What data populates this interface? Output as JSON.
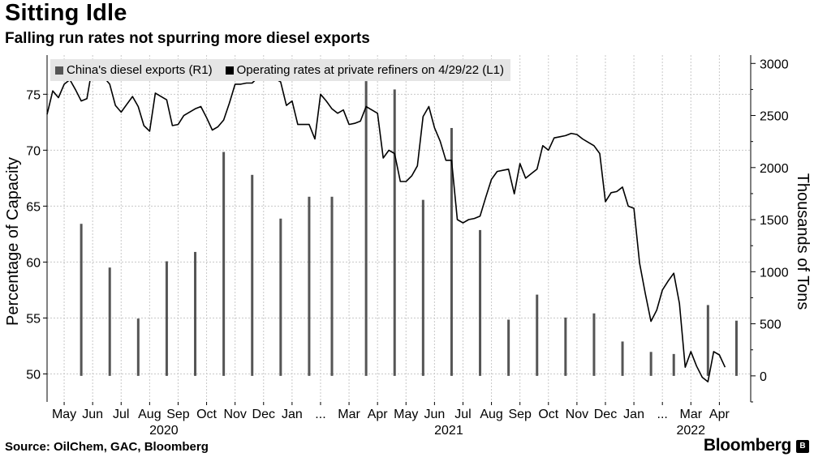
{
  "header": {
    "title": "Sitting Idle",
    "subtitle": "Falling run rates not spurring more diesel exports"
  },
  "footer": {
    "source": "Source: OilChem, GAC, Bloomberg",
    "brand": "Bloomberg",
    "brand_mark": "B"
  },
  "colors": {
    "bar": "#555555",
    "line": "#000000",
    "grid": "#c8c8c8",
    "legend_bg": "#e5e5e5"
  },
  "chart_data": {
    "type": "bar+line",
    "title": "Sitting Idle",
    "subtitle": "Falling run rates not spurring more diesel exports",
    "legend": [
      {
        "name": "China's diesel exports (R1)",
        "swatch_color": "#555555"
      },
      {
        "name": "Operating rates at private refiners on 4/29/22 (L1)",
        "swatch_color": "#000000"
      }
    ],
    "y_left": {
      "label": "Percentage of Capacity",
      "min": 47.5,
      "max": 78.5,
      "ticks": [
        50,
        55,
        60,
        65,
        70,
        75
      ]
    },
    "y_right": {
      "label": "Thousands of Tons",
      "min": -250,
      "max": 3080,
      "ticks": [
        0,
        500,
        1000,
        1500,
        2000,
        2500,
        3000
      ]
    },
    "x": {
      "min": 0,
      "max": 24.7,
      "unit": "months since 2020-05-01"
    },
    "month_ticks": [
      {
        "label": "May",
        "pos": 0.6
      },
      {
        "label": "Jun",
        "pos": 1.6
      },
      {
        "label": "Jul",
        "pos": 2.6
      },
      {
        "label": "Aug",
        "pos": 3.6
      },
      {
        "label": "Sep",
        "pos": 4.6
      },
      {
        "label": "Oct",
        "pos": 5.6
      },
      {
        "label": "Nov",
        "pos": 6.6
      },
      {
        "label": "Dec",
        "pos": 7.6
      },
      {
        "label": "Jan",
        "pos": 8.6
      },
      {
        "label": "...",
        "pos": 9.6
      },
      {
        "label": "Mar",
        "pos": 10.6
      },
      {
        "label": "Apr",
        "pos": 11.6
      },
      {
        "label": "May",
        "pos": 12.6
      },
      {
        "label": "Jun",
        "pos": 13.6
      },
      {
        "label": "Jul",
        "pos": 14.6
      },
      {
        "label": "Aug",
        "pos": 15.6
      },
      {
        "label": "Sep",
        "pos": 16.6
      },
      {
        "label": "Oct",
        "pos": 17.6
      },
      {
        "label": "Nov",
        "pos": 18.6
      },
      {
        "label": "Dec",
        "pos": 19.6
      },
      {
        "label": "Jan",
        "pos": 20.6
      },
      {
        "label": "...",
        "pos": 21.6
      },
      {
        "label": "Mar",
        "pos": 22.6
      },
      {
        "label": "Apr",
        "pos": 23.6
      }
    ],
    "year_ticks": [
      {
        "label": "2020",
        "pos": 4.1
      },
      {
        "label": "2021",
        "pos": 14.1
      },
      {
        "label": "2022",
        "pos": 22.6
      }
    ],
    "bars": [
      {
        "month": "May 2020",
        "t": 1.2,
        "value": 1460
      },
      {
        "month": "Jun 2020",
        "t": 2.2,
        "value": 1040
      },
      {
        "month": "Jul 2020",
        "t": 3.2,
        "value": 550
      },
      {
        "month": "Aug 2020",
        "t": 4.2,
        "value": 1100
      },
      {
        "month": "Sep 2020",
        "t": 5.2,
        "value": 1190
      },
      {
        "month": "Oct 2020",
        "t": 6.2,
        "value": 2150
      },
      {
        "month": "Nov 2020",
        "t": 7.2,
        "value": 1930
      },
      {
        "month": "Dec 2020",
        "t": 8.2,
        "value": 1510
      },
      {
        "month": "Jan 2021",
        "t": 9.2,
        "value": 1720
      },
      {
        "month": "Feb 2021",
        "t": 10.0,
        "value": 1720
      },
      {
        "month": "Mar 2021",
        "t": 11.2,
        "value": 2830
      },
      {
        "month": "Apr 2021",
        "t": 12.2,
        "value": 2750
      },
      {
        "month": "May 2021",
        "t": 13.2,
        "value": 1690
      },
      {
        "month": "Jun 2021",
        "t": 14.2,
        "value": 2380
      },
      {
        "month": "Jul 2021",
        "t": 15.2,
        "value": 1400
      },
      {
        "month": "Aug 2021",
        "t": 16.2,
        "value": 540
      },
      {
        "month": "Sep 2021",
        "t": 17.2,
        "value": 780
      },
      {
        "month": "Oct 2021",
        "t": 18.2,
        "value": 560
      },
      {
        "month": "Nov 2021",
        "t": 19.2,
        "value": 600
      },
      {
        "month": "Dec 2021",
        "t": 20.2,
        "value": 330
      },
      {
        "month": "Jan 2022",
        "t": 21.2,
        "value": 230
      },
      {
        "month": "Feb 2022",
        "t": 22.0,
        "value": 210
      },
      {
        "month": "Mar 2022",
        "t": 23.2,
        "value": 680
      },
      {
        "month": "Apr 2022",
        "t": 24.2,
        "value": 530
      }
    ],
    "line": [
      [
        0,
        73.2
      ],
      [
        0.2,
        75.3
      ],
      [
        0.4,
        74.7
      ],
      [
        0.6,
        75.9
      ],
      [
        0.8,
        76.3
      ],
      [
        1.0,
        75.4
      ],
      [
        1.2,
        74.4
      ],
      [
        1.4,
        74.6
      ],
      [
        1.6,
        77.6
      ],
      [
        1.8,
        77.0
      ],
      [
        2.0,
        76.5
      ],
      [
        2.2,
        75.9
      ],
      [
        2.4,
        74.0
      ],
      [
        2.6,
        73.4
      ],
      [
        2.8,
        74.1
      ],
      [
        3.0,
        74.8
      ],
      [
        3.2,
        73.9
      ],
      [
        3.4,
        72.2
      ],
      [
        3.6,
        71.7
      ],
      [
        3.8,
        75.1
      ],
      [
        4.0,
        74.8
      ],
      [
        4.2,
        74.5
      ],
      [
        4.4,
        72.2
      ],
      [
        4.6,
        72.3
      ],
      [
        4.8,
        73.1
      ],
      [
        5.0,
        73.4
      ],
      [
        5.2,
        73.7
      ],
      [
        5.4,
        73.9
      ],
      [
        5.6,
        72.9
      ],
      [
        5.8,
        71.8
      ],
      [
        6.0,
        72.1
      ],
      [
        6.2,
        72.7
      ],
      [
        6.4,
        74.2
      ],
      [
        6.6,
        75.9
      ],
      [
        6.8,
        75.9
      ],
      [
        7.0,
        76.0
      ],
      [
        7.2,
        76.0
      ],
      [
        7.4,
        76.5
      ],
      [
        7.6,
        76.5
      ],
      [
        7.8,
        76.5
      ],
      [
        8.0,
        76.4
      ],
      [
        8.2,
        76.1
      ],
      [
        8.4,
        74.0
      ],
      [
        8.6,
        74.4
      ],
      [
        8.8,
        72.3
      ],
      [
        9.0,
        72.3
      ],
      [
        9.2,
        72.3
      ],
      [
        9.4,
        71.0
      ],
      [
        9.6,
        75.0
      ],
      [
        9.8,
        74.4
      ],
      [
        10.0,
        73.7
      ],
      [
        10.2,
        73.3
      ],
      [
        10.4,
        73.6
      ],
      [
        10.6,
        72.3
      ],
      [
        10.8,
        72.4
      ],
      [
        11.0,
        72.6
      ],
      [
        11.2,
        73.9
      ],
      [
        11.4,
        73.6
      ],
      [
        11.6,
        73.3
      ],
      [
        11.8,
        69.3
      ],
      [
        12.0,
        70.0
      ],
      [
        12.2,
        69.7
      ],
      [
        12.4,
        67.2
      ],
      [
        12.6,
        67.2
      ],
      [
        12.8,
        67.7
      ],
      [
        13.0,
        68.6
      ],
      [
        13.2,
        73.0
      ],
      [
        13.4,
        73.9
      ],
      [
        13.6,
        72.0
      ],
      [
        13.8,
        70.8
      ],
      [
        14.0,
        69.1
      ],
      [
        14.2,
        69.1
      ],
      [
        14.4,
        63.8
      ],
      [
        14.6,
        63.5
      ],
      [
        14.8,
        63.8
      ],
      [
        15.0,
        63.9
      ],
      [
        15.2,
        64.1
      ],
      [
        15.4,
        65.8
      ],
      [
        15.6,
        67.4
      ],
      [
        15.8,
        68.1
      ],
      [
        16.0,
        68.2
      ],
      [
        16.2,
        68.3
      ],
      [
        16.4,
        66.1
      ],
      [
        16.6,
        68.8
      ],
      [
        16.8,
        67.5
      ],
      [
        17.0,
        67.9
      ],
      [
        17.2,
        68.3
      ],
      [
        17.4,
        70.4
      ],
      [
        17.6,
        70.0
      ],
      [
        17.8,
        71.1
      ],
      [
        18.0,
        71.2
      ],
      [
        18.2,
        71.3
      ],
      [
        18.4,
        71.5
      ],
      [
        18.6,
        71.4
      ],
      [
        18.8,
        71.0
      ],
      [
        19.0,
        70.7
      ],
      [
        19.2,
        70.4
      ],
      [
        19.4,
        69.7
      ],
      [
        19.6,
        65.4
      ],
      [
        19.8,
        66.2
      ],
      [
        20.0,
        66.3
      ],
      [
        20.2,
        66.7
      ],
      [
        20.4,
        65.0
      ],
      [
        20.6,
        64.8
      ],
      [
        20.8,
        59.9
      ],
      [
        21.0,
        57.2
      ],
      [
        21.2,
        54.7
      ],
      [
        21.4,
        55.7
      ],
      [
        21.6,
        57.5
      ],
      [
        21.8,
        58.3
      ],
      [
        22.0,
        59.0
      ],
      [
        22.2,
        56.3
      ],
      [
        22.4,
        50.6
      ],
      [
        22.6,
        52.0
      ],
      [
        22.8,
        50.7
      ],
      [
        23.0,
        49.7
      ],
      [
        23.2,
        49.3
      ],
      [
        23.4,
        52.0
      ],
      [
        23.6,
        51.7
      ],
      [
        23.8,
        50.6
      ]
    ]
  }
}
